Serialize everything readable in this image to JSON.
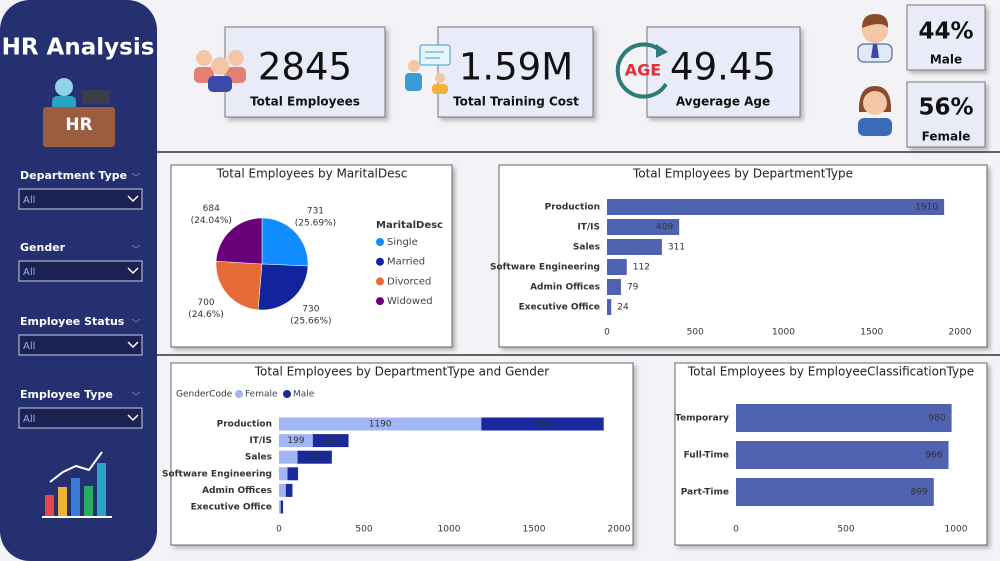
{
  "sidebar": {
    "title": "HR Analysis",
    "icon_text": "HR",
    "filters": [
      {
        "label": "Department Type",
        "value": "All"
      },
      {
        "label": "Gender",
        "value": "All"
      },
      {
        "label": "Employee Status",
        "value": "All"
      },
      {
        "label": "Employee Type",
        "value": "All"
      }
    ]
  },
  "kpis": [
    {
      "value": "2845",
      "label": "Total Employees"
    },
    {
      "value": "1.59M",
      "label": "Total Training Cost"
    },
    {
      "value": "49.45",
      "label": "Avgerage Age",
      "icon_text": "AGE"
    },
    {
      "value": "44%",
      "label": "Male"
    },
    {
      "value": "56%",
      "label": "Female"
    }
  ],
  "chart_data": [
    {
      "type": "pie",
      "title": "Total Employees by MaritalDesc",
      "legend_title": "MaritalDesc",
      "categories": [
        "Single",
        "Married",
        "Divorced",
        "Widowed"
      ],
      "values": [
        731,
        730,
        700,
        684
      ],
      "percent_labels": [
        "(25.69%)",
        "(25.66%)",
        "(24.6%)",
        "(24.04%)"
      ],
      "colors": [
        "#118dff",
        "#12239e",
        "#e66c37",
        "#6b007b"
      ]
    },
    {
      "type": "bar",
      "orientation": "horizontal",
      "title": "Total Employees by DepartmentType",
      "categories": [
        "Production",
        "IT/IS",
        "Sales",
        "Software Engineering",
        "Admin Offices",
        "Executive Office"
      ],
      "values": [
        1910,
        409,
        311,
        112,
        79,
        24
      ],
      "color": "#4f62b0",
      "xlim": [
        0,
        2000
      ],
      "xticks": [
        0,
        500,
        1000,
        1500,
        2000
      ]
    },
    {
      "type": "bar",
      "orientation": "horizontal",
      "stacked": true,
      "title": "Total Employees by DepartmentType and Gender",
      "legend_title": "GenderCode",
      "categories": [
        "Production",
        "IT/IS",
        "Sales",
        "Software Engineering",
        "Admin Offices",
        "Executive Office"
      ],
      "series": [
        {
          "name": "Female",
          "color": "#a0b6f5",
          "values": [
            1190,
            199,
            109,
            50,
            40,
            10
          ]
        },
        {
          "name": "Male",
          "color": "#1a2a9c",
          "values": [
            720,
            210,
            202,
            62,
            39,
            14
          ]
        }
      ],
      "xlim": [
        0,
        2000
      ],
      "xticks": [
        0,
        500,
        1000,
        1500,
        2000
      ]
    },
    {
      "type": "bar",
      "orientation": "horizontal",
      "title": "Total Employees by EmployeeClassificationType",
      "categories": [
        "Temporary",
        "Full-Time",
        "Part-Time"
      ],
      "values": [
        980,
        966,
        899
      ],
      "color": "#4f62b0",
      "xlim": [
        0,
        1000
      ],
      "xticks": [
        0,
        500,
        1000
      ]
    }
  ]
}
